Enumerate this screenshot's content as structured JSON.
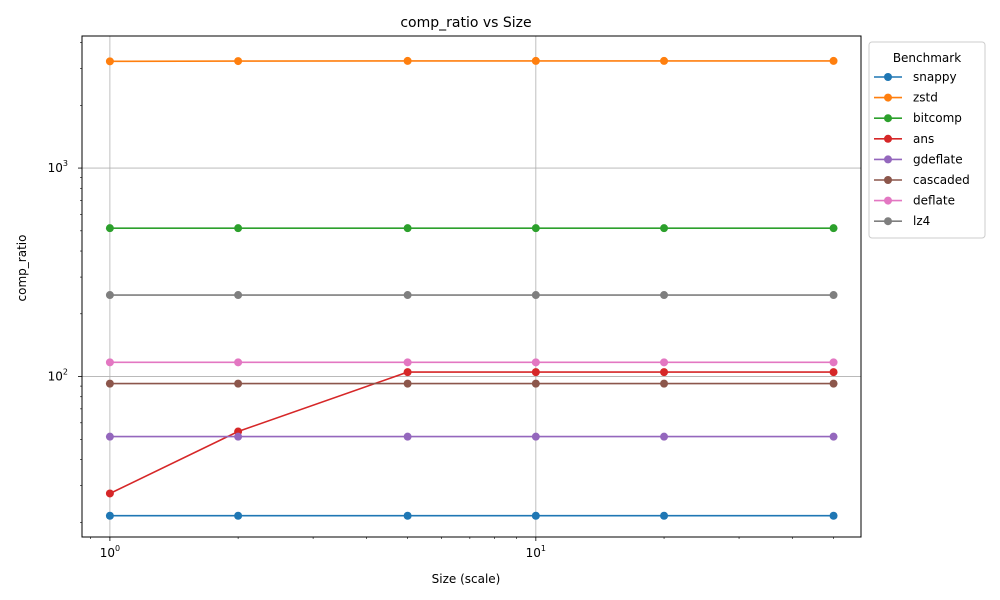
{
  "chart_data": {
    "type": "line",
    "title": "comp_ratio vs Size",
    "xlabel": "Size (scale)",
    "ylabel": "comp_ratio",
    "xscale": "log",
    "yscale": "log",
    "xlim": [
      0.86,
      58
    ],
    "ylim": [
      17,
      4300
    ],
    "grid": true,
    "legend_title": "Benchmark",
    "legend_position": "outside-top-right",
    "x": [
      1,
      2,
      5,
      10,
      20,
      50
    ],
    "x_ticks": [
      {
        "value": 1,
        "base": "10",
        "exp": "0"
      },
      {
        "value": 10,
        "base": "10",
        "exp": "1"
      }
    ],
    "y_ticks": [
      {
        "value": 100,
        "base": "10",
        "exp": "2"
      },
      {
        "value": 1000,
        "base": "10",
        "exp": "3"
      }
    ],
    "series": [
      {
        "name": "snappy",
        "color": "#1f77b4",
        "values": [
          21.5,
          21.5,
          21.5,
          21.5,
          21.5,
          21.5
        ]
      },
      {
        "name": "zstd",
        "color": "#ff7f0e",
        "values": [
          3250,
          3260,
          3265,
          3265,
          3265,
          3265
        ]
      },
      {
        "name": "bitcomp",
        "color": "#2ca02c",
        "values": [
          515,
          515,
          515,
          515,
          515,
          515
        ]
      },
      {
        "name": "ans",
        "color": "#d62728",
        "values": [
          27.5,
          54.5,
          105,
          105,
          105,
          105
        ]
      },
      {
        "name": "gdeflate",
        "color": "#9467bd",
        "values": [
          51.5,
          51.5,
          51.5,
          51.5,
          51.5,
          51.5
        ]
      },
      {
        "name": "cascaded",
        "color": "#8c564b",
        "values": [
          92.5,
          92.5,
          92.5,
          92.5,
          92.5,
          92.5
        ]
      },
      {
        "name": "deflate",
        "color": "#e377c2",
        "values": [
          117,
          117,
          117,
          117,
          117,
          117
        ]
      },
      {
        "name": "lz4",
        "color": "#7f7f7f",
        "values": [
          246,
          246,
          246,
          246,
          246,
          246
        ]
      }
    ]
  }
}
